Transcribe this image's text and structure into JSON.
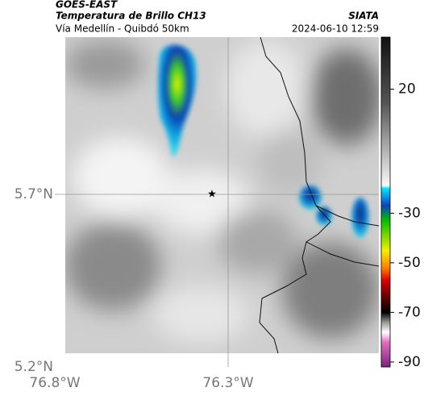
{
  "header": {
    "agency": "GOES-EAST",
    "product": "Temperatura de Brillo CH13",
    "source": "SIATA",
    "route": "Vía Medellín - Quibdó 50km",
    "timestamp": "2024-06-10 12:59"
  },
  "axes": {
    "lat_labels": [
      "5.7°N",
      "5.2°N"
    ],
    "lon_labels": [
      "76.8°W",
      "76.3°W"
    ]
  },
  "colorbar": {
    "lim": [
      41,
      -92
    ],
    "ticks": [
      20,
      -30,
      -50,
      -70,
      -90
    ]
  }
}
